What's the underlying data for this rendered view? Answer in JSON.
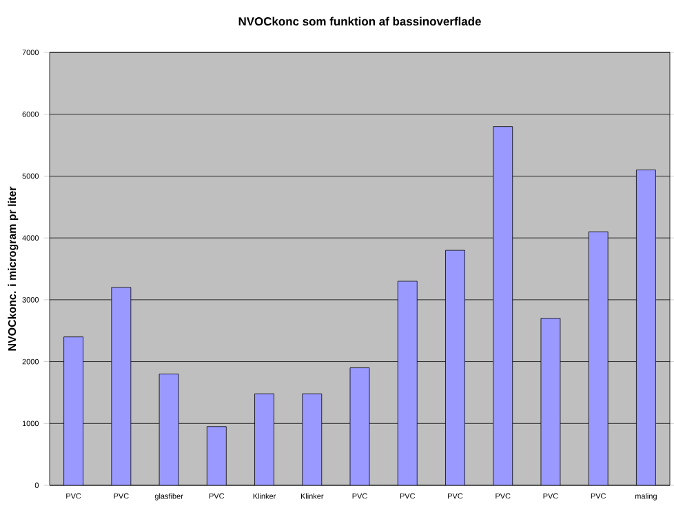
{
  "chart_data": {
    "type": "bar",
    "title": "NVOCkonc som funktion af bassinoverflade",
    "ylabel": "NVOCkonc. i microgram pr liter",
    "categories": [
      "PVC",
      "PVC",
      "glasfiber",
      "PVC",
      "Klinker",
      "Klinker",
      "PVC",
      "PVC",
      "PVC",
      "PVC",
      "PVC",
      "PVC",
      "maling"
    ],
    "values": [
      2400,
      3200,
      1800,
      950,
      1480,
      1480,
      1900,
      3300,
      3800,
      5800,
      2700,
      4100,
      5100
    ],
    "color": "#9999ff",
    "ylim": [
      0,
      7000
    ],
    "yticks": [
      0,
      1000,
      2000,
      3000,
      4000,
      5000,
      6000,
      7000
    ],
    "grid": "y"
  }
}
